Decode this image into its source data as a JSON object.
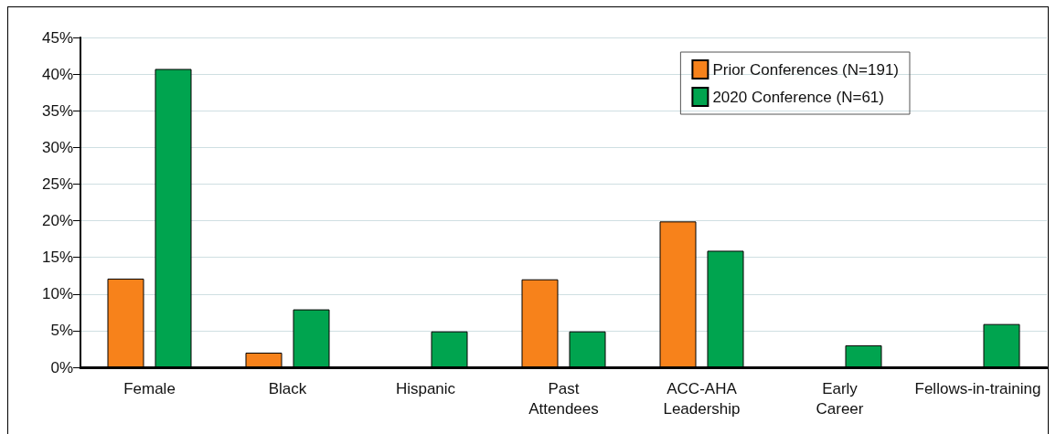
{
  "chart_data": {
    "type": "bar",
    "categories": [
      "Female",
      "Black",
      "Hispanic",
      "Past\nAttendees",
      "ACC-AHA\nLeadership",
      "Early\nCareer",
      "Fellows-in-training"
    ],
    "series": [
      {
        "name": "Prior Conferences (N=191)",
        "color": "#f7821b",
        "values": [
          12.1,
          2.0,
          0,
          12.0,
          19.9,
          0,
          0
        ]
      },
      {
        "name": "2020 Conference (N=61)",
        "color": "#00a44f",
        "values": [
          40.7,
          7.9,
          4.9,
          4.9,
          15.9,
          3.0,
          5.9
        ]
      }
    ],
    "ylim": [
      0,
      45
    ],
    "yticks": [
      {
        "value": 0,
        "label": "0%"
      },
      {
        "value": 5,
        "label": "5%"
      },
      {
        "value": 10,
        "label": "10%"
      },
      {
        "value": 15,
        "label": "15%"
      },
      {
        "value": 20,
        "label": "20%"
      },
      {
        "value": 25,
        "label": "25%"
      },
      {
        "value": 30,
        "label": "30%"
      },
      {
        "value": 35,
        "label": "35%"
      },
      {
        "value": 40,
        "label": "40%"
      },
      {
        "value": 45,
        "label": "45%"
      }
    ],
    "grid": "y",
    "legend": "top right"
  }
}
